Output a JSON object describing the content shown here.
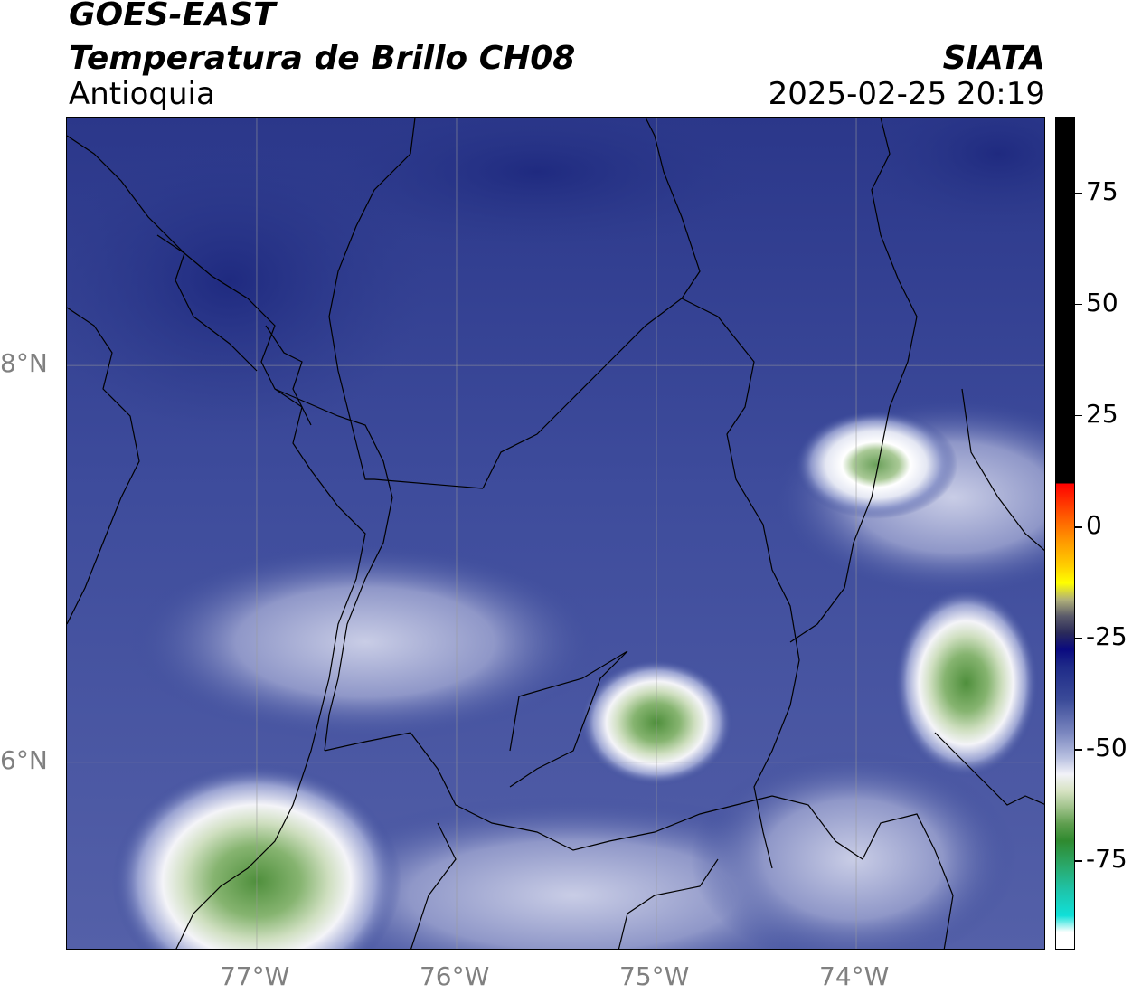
{
  "header": {
    "satellite": "GOES-EAST",
    "product": "Temperatura de Brillo CH08",
    "region": "Antioquia",
    "organization": "SIATA",
    "datetime": "2025-02-25 20:19"
  },
  "map": {
    "lon_range": [
      -77.95,
      -73.05
    ],
    "lat_range": [
      5.05,
      9.25
    ],
    "lon_ticks": [
      {
        "value": -77,
        "label": "77°W"
      },
      {
        "value": -76,
        "label": "76°W"
      },
      {
        "value": -75,
        "label": "75°W"
      },
      {
        "value": -74,
        "label": "74°W"
      }
    ],
    "lat_ticks": [
      {
        "value": 8,
        "label": "8°N"
      },
      {
        "value": 6,
        "label": "6°N"
      }
    ],
    "grid": true,
    "background_color": "#3a4a9a",
    "cloud_features": [
      {
        "kind": "warm-cloud",
        "lon": -75.0,
        "lat": 6.2
      },
      {
        "kind": "warm-cloud",
        "lon": -73.45,
        "lat": 6.4
      },
      {
        "kind": "warm-cloud",
        "lon": -77.0,
        "lat": 5.4
      },
      {
        "kind": "cloud-band",
        "lon": -73.9,
        "lat": 7.5
      }
    ]
  },
  "colorbar": {
    "range": [
      -95,
      92
    ],
    "ticks": [
      {
        "value": 75,
        "label": "75"
      },
      {
        "value": 50,
        "label": "50"
      },
      {
        "value": 25,
        "label": "25"
      },
      {
        "value": 0,
        "label": "0"
      },
      {
        "value": -25,
        "label": "-25"
      },
      {
        "value": -50,
        "label": "-50"
      },
      {
        "value": -75,
        "label": "-75"
      }
    ]
  }
}
